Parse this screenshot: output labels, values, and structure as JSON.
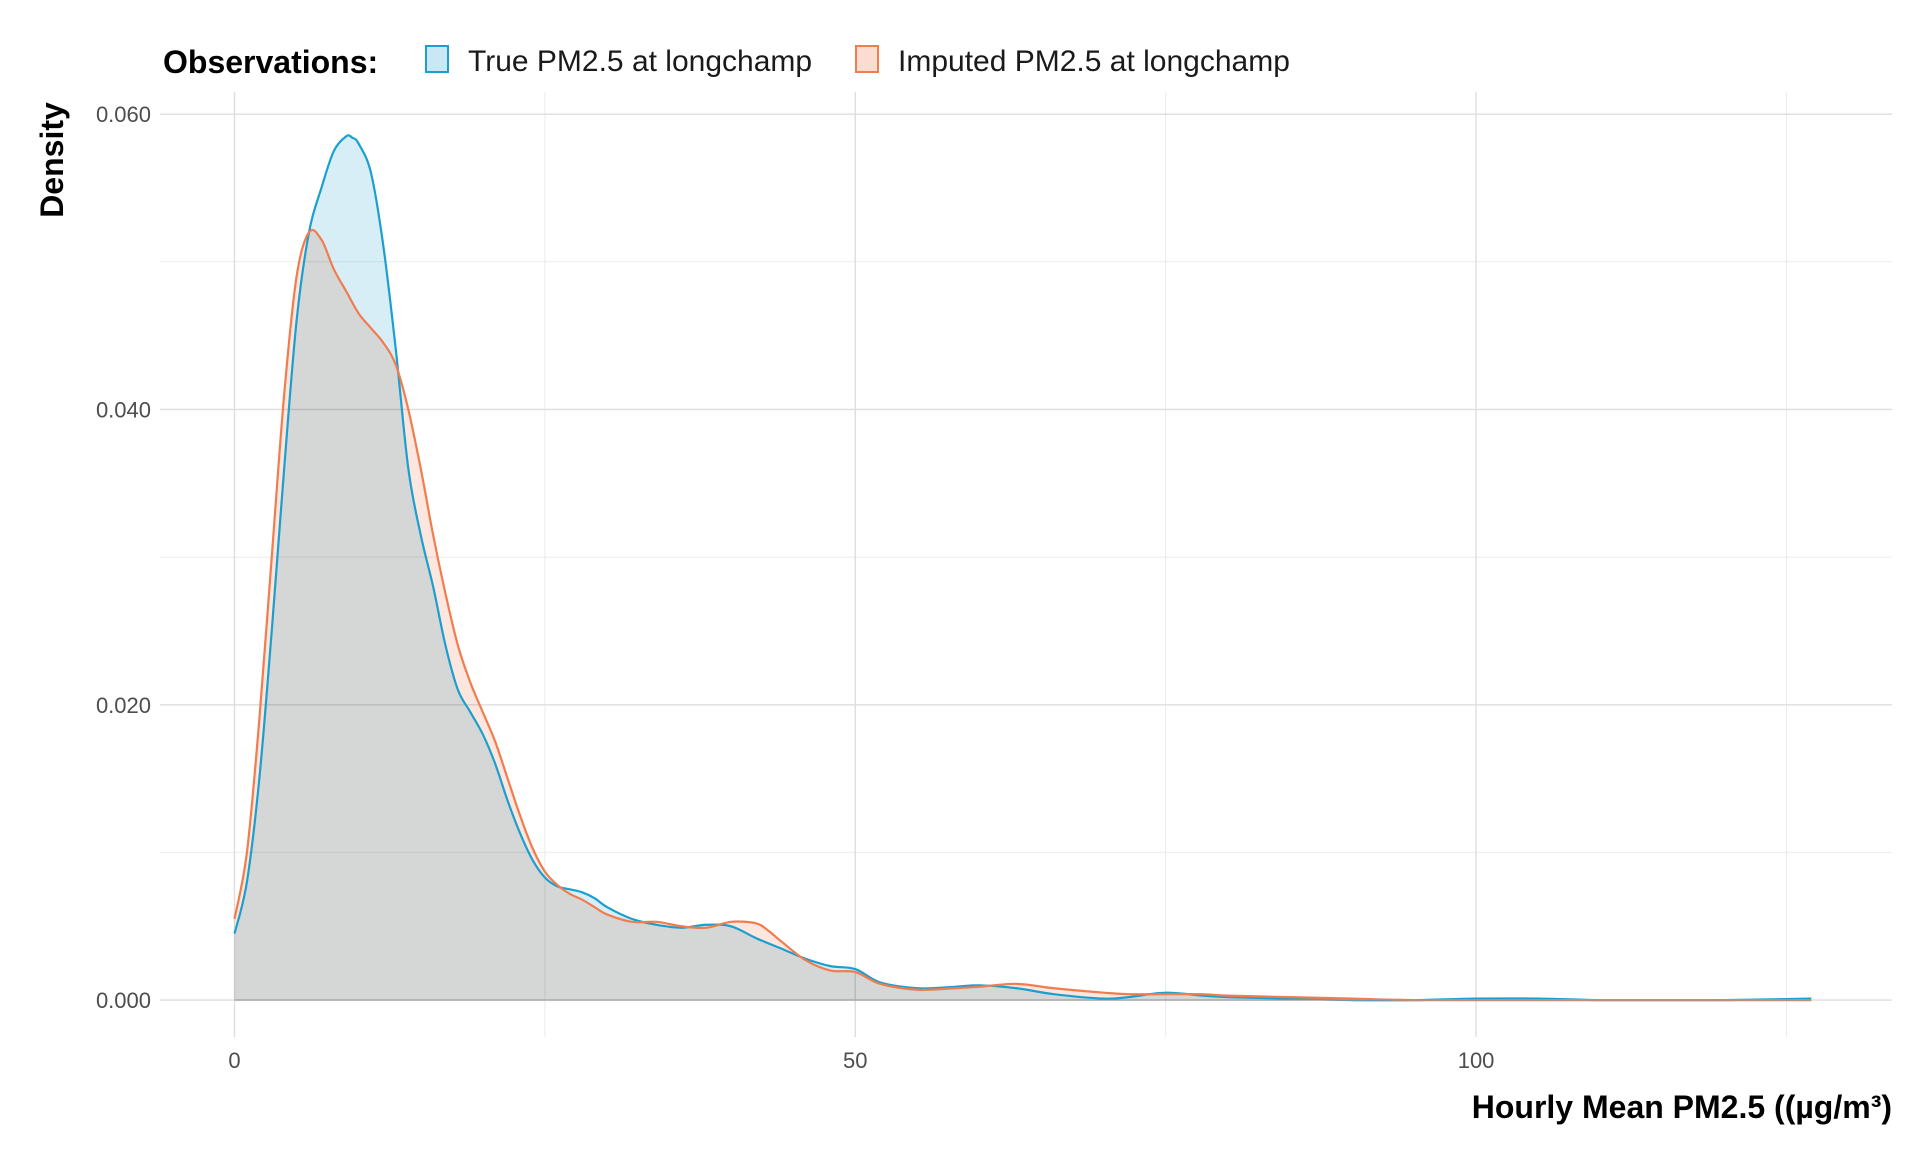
{
  "chart_data": {
    "type": "area",
    "title": "",
    "xlabel": "Hourly Mean PM2.5 ((µg/m³)",
    "ylabel": "Density",
    "xlim": [
      -6,
      133.5
    ],
    "ylim": [
      -0.0025,
      0.0615
    ],
    "x_ticks": [
      0,
      50,
      100
    ],
    "x_tick_labels": [
      "0",
      "50",
      "100"
    ],
    "x_minor_ticks": [
      25,
      75,
      125
    ],
    "y_ticks": [
      0,
      0.02,
      0.04,
      0.06
    ],
    "y_tick_labels": [
      "0.000",
      "0.020",
      "0.040",
      "0.060"
    ],
    "y_minor_ticks": [
      0.01,
      0.03,
      0.05
    ],
    "grid": true,
    "legend": {
      "title": "Observations:",
      "position": "top-left"
    },
    "series": [
      {
        "name": "True PM2.5 at longchamp",
        "color": "#1b9fcf",
        "fill": "#c9e7f4",
        "x": [
          0,
          1,
          2,
          3,
          4,
          5,
          6,
          7,
          8,
          9,
          9.5,
          10,
          11,
          12,
          13,
          14,
          15,
          16,
          17,
          18,
          19,
          20,
          21,
          22,
          23,
          24,
          25,
          26,
          27,
          28,
          29,
          30,
          32,
          34,
          36,
          38,
          40,
          42,
          44,
          46,
          48,
          50,
          52,
          55,
          58,
          60,
          63,
          66,
          70,
          72,
          75,
          78,
          80,
          85,
          90,
          95,
          100,
          105,
          110,
          115,
          120,
          127
        ],
        "y": [
          0.0045,
          0.008,
          0.015,
          0.025,
          0.036,
          0.046,
          0.052,
          0.055,
          0.0575,
          0.0585,
          0.0584,
          0.058,
          0.056,
          0.051,
          0.044,
          0.036,
          0.0315,
          0.028,
          0.024,
          0.021,
          0.0195,
          0.018,
          0.016,
          0.0135,
          0.0113,
          0.0095,
          0.0083,
          0.0077,
          0.0075,
          0.0073,
          0.0069,
          0.0063,
          0.0055,
          0.0051,
          0.0049,
          0.0051,
          0.005,
          0.0042,
          0.0035,
          0.0028,
          0.0023,
          0.0021,
          0.0012,
          0.0008,
          0.0009,
          0.001,
          0.0008,
          0.0004,
          0.0001,
          0.0002,
          0.0005,
          0.0003,
          0.0002,
          0.0001,
          0.0,
          0.0,
          0.0001,
          0.0001,
          0.0,
          0.0,
          0.0,
          0.0001
        ]
      },
      {
        "name": "Imputed PM2.5 at longchamp",
        "color": "#f07d4f",
        "fill": "#fbdcd0",
        "x": [
          0,
          1,
          2,
          3,
          4,
          5,
          6,
          7,
          8,
          9,
          10,
          11,
          12,
          13,
          14,
          15,
          16,
          17,
          18,
          19,
          20,
          21,
          22,
          23,
          24,
          25,
          26,
          27,
          28,
          29,
          30,
          32,
          34,
          36,
          38,
          40,
          42,
          43,
          44,
          46,
          48,
          50,
          52,
          55,
          58,
          60,
          63,
          66,
          70,
          72,
          75,
          78,
          80,
          85,
          90,
          95,
          100,
          105,
          110,
          115,
          120,
          127
        ],
        "y": [
          0.0055,
          0.01,
          0.019,
          0.03,
          0.041,
          0.049,
          0.052,
          0.0515,
          0.0495,
          0.048,
          0.0465,
          0.0455,
          0.0445,
          0.043,
          0.04,
          0.036,
          0.0315,
          0.0275,
          0.024,
          0.0215,
          0.0195,
          0.0175,
          0.015,
          0.0125,
          0.0103,
          0.0087,
          0.0078,
          0.0072,
          0.0068,
          0.0063,
          0.0058,
          0.0053,
          0.0053,
          0.005,
          0.0049,
          0.0053,
          0.0052,
          0.0047,
          0.004,
          0.0027,
          0.002,
          0.0019,
          0.0011,
          0.0007,
          0.0008,
          0.0009,
          0.0011,
          0.0008,
          0.0005,
          0.0004,
          0.0004,
          0.0004,
          0.0003,
          0.0002,
          0.0001,
          0.0,
          0.0,
          0.0,
          0.0,
          0.0,
          0.0,
          0.0
        ]
      }
    ]
  }
}
